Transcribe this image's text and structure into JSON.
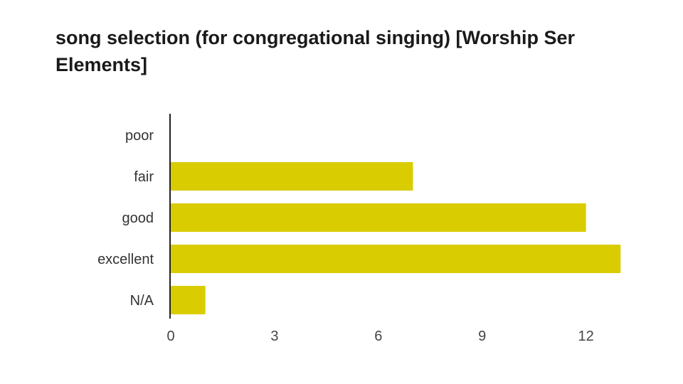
{
  "chart_data": {
    "type": "bar",
    "orientation": "horizontal",
    "title_lines": [
      "song selection (for congregational singing) [Worship Ser",
      "Elements]"
    ],
    "categories": [
      "poor",
      "fair",
      "good",
      "excellent",
      "N/A"
    ],
    "values": [
      0,
      7,
      12,
      13,
      1
    ],
    "xticks": [
      0,
      3,
      6,
      9,
      12
    ],
    "xlim": [
      0,
      13.2
    ],
    "bar_color": "#d9cc00",
    "axis_color": "#222222",
    "grid": false,
    "legend": "none"
  }
}
